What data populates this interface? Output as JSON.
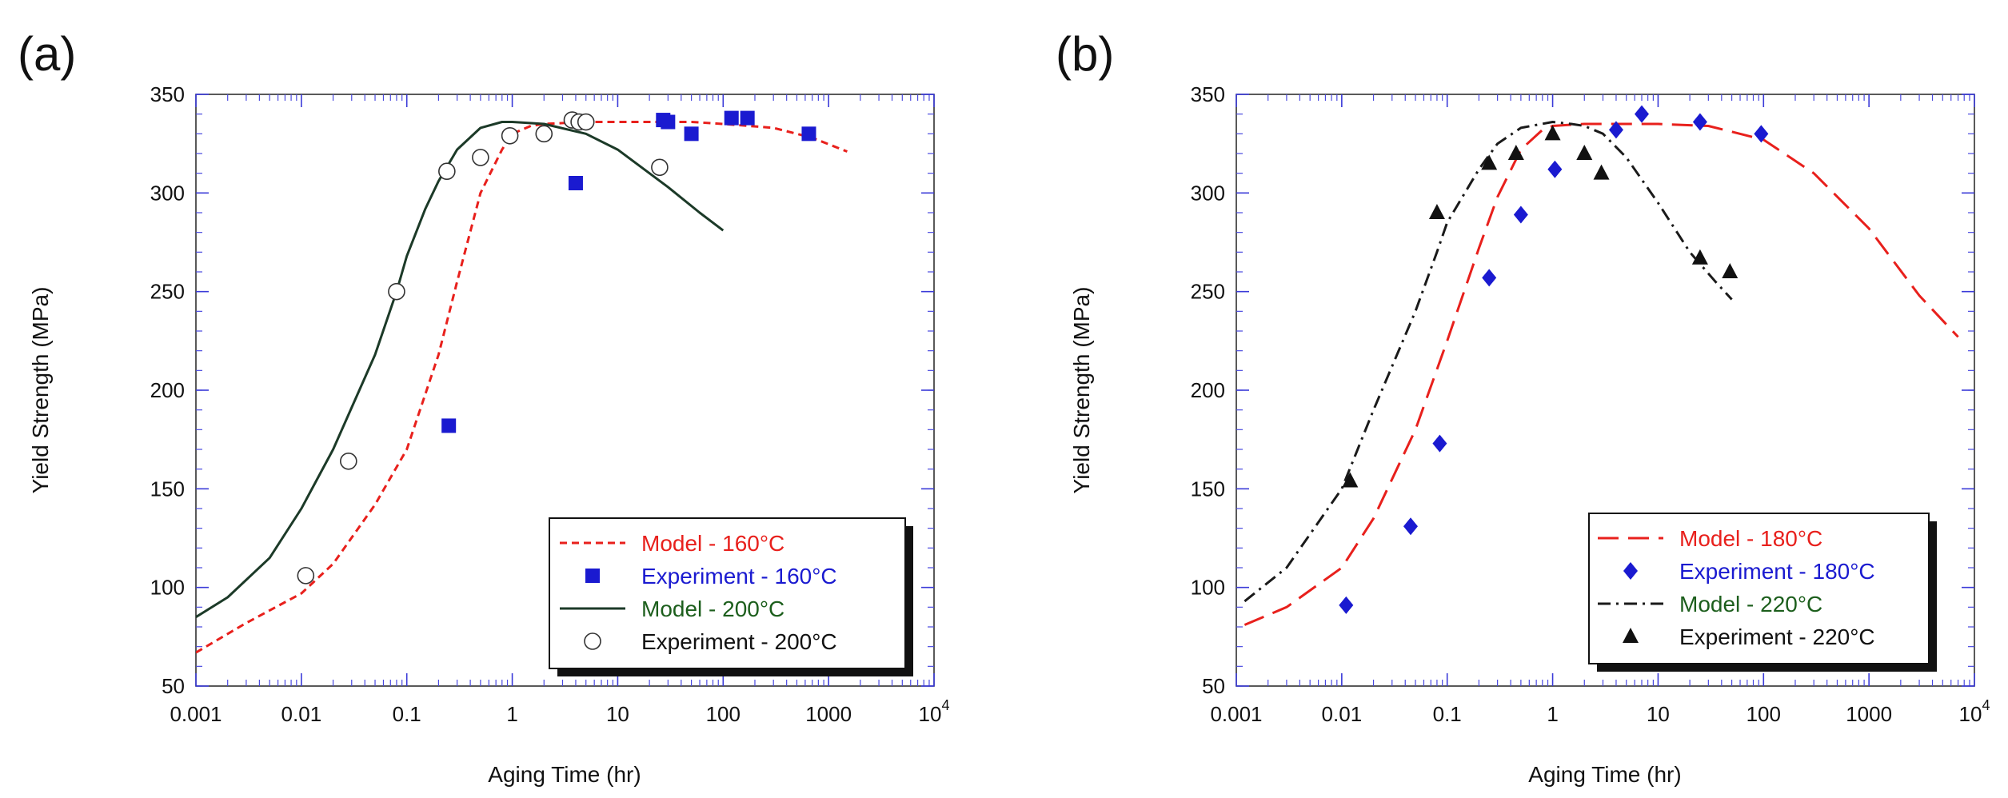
{
  "chart_data": [
    {
      "panel": "(a)",
      "type": "scatter",
      "xscale": "log",
      "xlim": [
        0.001,
        10000
      ],
      "ylim": [
        50,
        350
      ],
      "xlabel": "Aging Time (hr)",
      "ylabel": "Yield Strength (MPa)",
      "x_ticks": [
        "0.001",
        "0.01",
        "0.1",
        "1",
        "10",
        "100",
        "1000",
        "10"
      ],
      "x_tick_last_exp": "4",
      "y_ticks": [
        "50",
        "100",
        "150",
        "200",
        "250",
        "300",
        "350"
      ],
      "legend_position": "bottom-right",
      "series": [
        {
          "name": "Model - 160°C",
          "kind": "line",
          "style": "dashed",
          "color": "#e8201c",
          "label_color": "#e8201c",
          "x": [
            0.001,
            0.003,
            0.01,
            0.02,
            0.05,
            0.1,
            0.2,
            0.3,
            0.5,
            0.8,
            1,
            1.5,
            2,
            5,
            10,
            50,
            100,
            300,
            700,
            1500
          ],
          "y": [
            67,
            82,
            97,
            112,
            142,
            170,
            218,
            255,
            300,
            322,
            330,
            334,
            335,
            336,
            336,
            336,
            335,
            333,
            328,
            321
          ]
        },
        {
          "name": "Experiment - 160°C",
          "kind": "points",
          "marker": "square",
          "color": "#1a1ad0",
          "label_color": "#1a1ad0",
          "x": [
            0.25,
            4,
            27,
            30,
            50,
            120,
            170,
            650
          ],
          "y": [
            182,
            305,
            337,
            336,
            330,
            338,
            338,
            330
          ]
        },
        {
          "name": "Model - 200°C",
          "kind": "line",
          "style": "solid",
          "color": "#1c3a28",
          "label_color": "#1c5e1c",
          "x": [
            0.001,
            0.002,
            0.005,
            0.01,
            0.02,
            0.05,
            0.08,
            0.1,
            0.15,
            0.2,
            0.3,
            0.5,
            0.8,
            1,
            2,
            5,
            10,
            30,
            60,
            100
          ],
          "y": [
            85,
            95,
            115,
            140,
            170,
            218,
            250,
            268,
            292,
            306,
            322,
            333,
            336,
            336,
            335,
            330,
            322,
            303,
            290,
            281
          ]
        },
        {
          "name": "Experiment - 200°C",
          "kind": "points",
          "marker": "open-circle",
          "color": "#111111",
          "label_color": "#111111",
          "x": [
            0.011,
            0.028,
            0.08,
            0.24,
            0.5,
            0.95,
            2,
            3.7,
            4.3,
            5,
            25
          ],
          "y": [
            106,
            164,
            250,
            311,
            318,
            329,
            330,
            337,
            336,
            336,
            313
          ]
        }
      ]
    },
    {
      "panel": "(b)",
      "type": "scatter",
      "xscale": "log",
      "xlim": [
        0.001,
        10000
      ],
      "ylim": [
        50,
        350
      ],
      "xlabel": "Aging Time (hr)",
      "ylabel": "Yield Strength (MPa)",
      "x_ticks": [
        "0.001",
        "0.01",
        "0.1",
        "1",
        "10",
        "100",
        "1000",
        "10"
      ],
      "x_tick_last_exp": "4",
      "y_ticks": [
        "50",
        "100",
        "150",
        "200",
        "250",
        "300",
        "350"
      ],
      "legend_position": "bottom-right",
      "series": [
        {
          "name": "Model - 180°C",
          "kind": "line",
          "style": "long-dash",
          "color": "#e8201c",
          "label_color": "#e8201c",
          "x": [
            0.0012,
            0.003,
            0.01,
            0.02,
            0.05,
            0.1,
            0.2,
            0.3,
            0.5,
            0.8,
            1,
            2,
            5,
            10,
            30,
            100,
            300,
            1000,
            3000,
            7000
          ],
          "y": [
            81,
            90,
            110,
            135,
            180,
            225,
            272,
            298,
            322,
            332,
            334,
            335,
            335,
            335,
            334,
            327,
            310,
            282,
            248,
            227
          ]
        },
        {
          "name": "Experiment - 180°C",
          "kind": "points",
          "marker": "diamond",
          "color": "#1a1ad0",
          "label_color": "#1a1ad0",
          "x": [
            0.011,
            0.045,
            0.085,
            0.25,
            0.5,
            1.05,
            4,
            7,
            25,
            95
          ],
          "y": [
            91,
            131,
            173,
            257,
            289,
            312,
            332,
            340,
            336,
            330
          ]
        },
        {
          "name": "Model - 220°C",
          "kind": "line",
          "style": "dash-dot",
          "color": "#1a1a1a",
          "label_color": "#1c5e1c",
          "x": [
            0.0012,
            0.003,
            0.01,
            0.02,
            0.05,
            0.08,
            0.1,
            0.2,
            0.3,
            0.5,
            1,
            1.5,
            2,
            3,
            5,
            10,
            20,
            35,
            50
          ],
          "y": [
            93,
            110,
            150,
            190,
            240,
            270,
            285,
            312,
            325,
            333,
            336,
            335,
            334,
            330,
            318,
            295,
            270,
            255,
            246
          ]
        },
        {
          "name": "Experiment - 220°C",
          "kind": "points",
          "marker": "triangle",
          "color": "#111111",
          "label_color": "#111111",
          "x": [
            0.012,
            0.08,
            0.25,
            0.45,
            1,
            2,
            2.9,
            25,
            48
          ],
          "y": [
            154,
            290,
            315,
            320,
            330,
            320,
            310,
            267,
            260
          ]
        }
      ]
    }
  ]
}
